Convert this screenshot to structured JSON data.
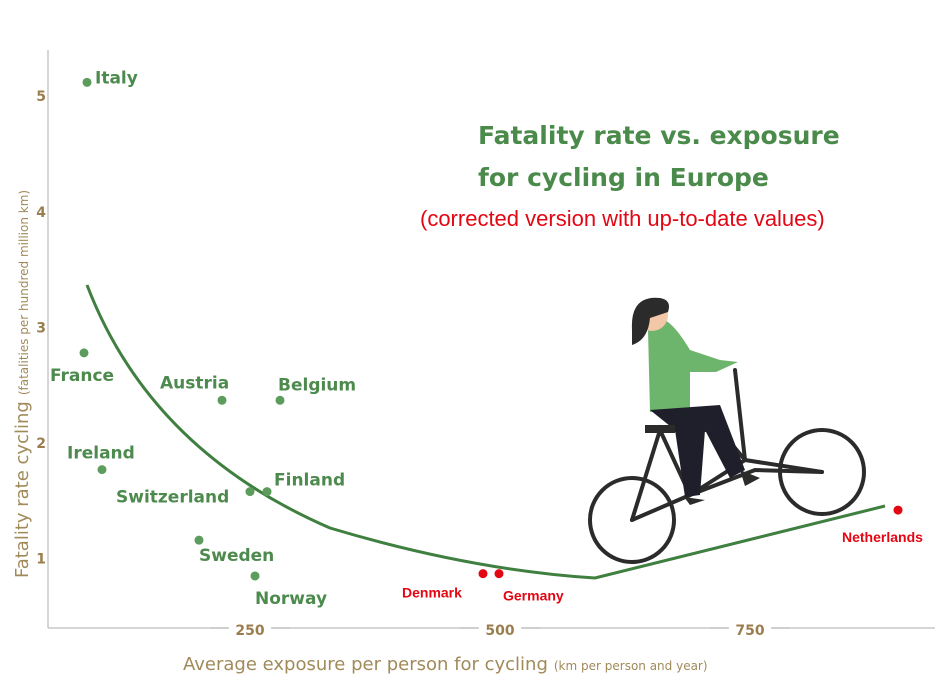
{
  "chart_data": {
    "type": "scatter",
    "title": [
      "Fatality rate vs. exposure",
      "for cycling in Europe"
    ],
    "subtitle": "(corrected version with up-to-date values)",
    "x_label": "Average exposure per person for cycling",
    "x_label_note": "(km per person and year)",
    "y_label": "Fatality rate cycling",
    "y_label_note": "(fatalities per hundred million km)",
    "xlim": [
      48,
      935
    ],
    "ylim": [
      0.4,
      5.4
    ],
    "xticks": [
      250,
      500,
      750
    ],
    "yticks": [
      1,
      2,
      3,
      4,
      5
    ],
    "points": [
      {
        "label": "Italy",
        "x": 87,
        "y": 5.12,
        "color": "#5c9c5c"
      },
      {
        "label": "France",
        "x": 84,
        "y": 2.78,
        "color": "#5c9c5c"
      },
      {
        "label": "Austria",
        "x": 222,
        "y": 2.37,
        "color": "#5c9c5c"
      },
      {
        "label": "Belgium",
        "x": 280,
        "y": 2.37,
        "color": "#5c9c5c"
      },
      {
        "label": "Ireland",
        "x": 102,
        "y": 1.77,
        "color": "#5c9c5c"
      },
      {
        "label": "Switzerland",
        "x": 250,
        "y": 1.58,
        "color": "#5c9c5c"
      },
      {
        "label": "Finland",
        "x": 267,
        "y": 1.58,
        "color": "#5c9c5c"
      },
      {
        "label": "Sweden",
        "x": 199,
        "y": 1.16,
        "color": "#5c9c5c"
      },
      {
        "label": "Norway",
        "x": 255,
        "y": 0.85,
        "color": "#5c9c5c"
      },
      {
        "label": "Denmark",
        "x": 483,
        "y": 0.87,
        "color": "#e30613"
      },
      {
        "label": "Germany",
        "x": 499,
        "y": 0.87,
        "color": "#e30613"
      },
      {
        "label": "Netherlands",
        "x": 898,
        "y": 1.42,
        "color": "#e30613"
      }
    ]
  }
}
